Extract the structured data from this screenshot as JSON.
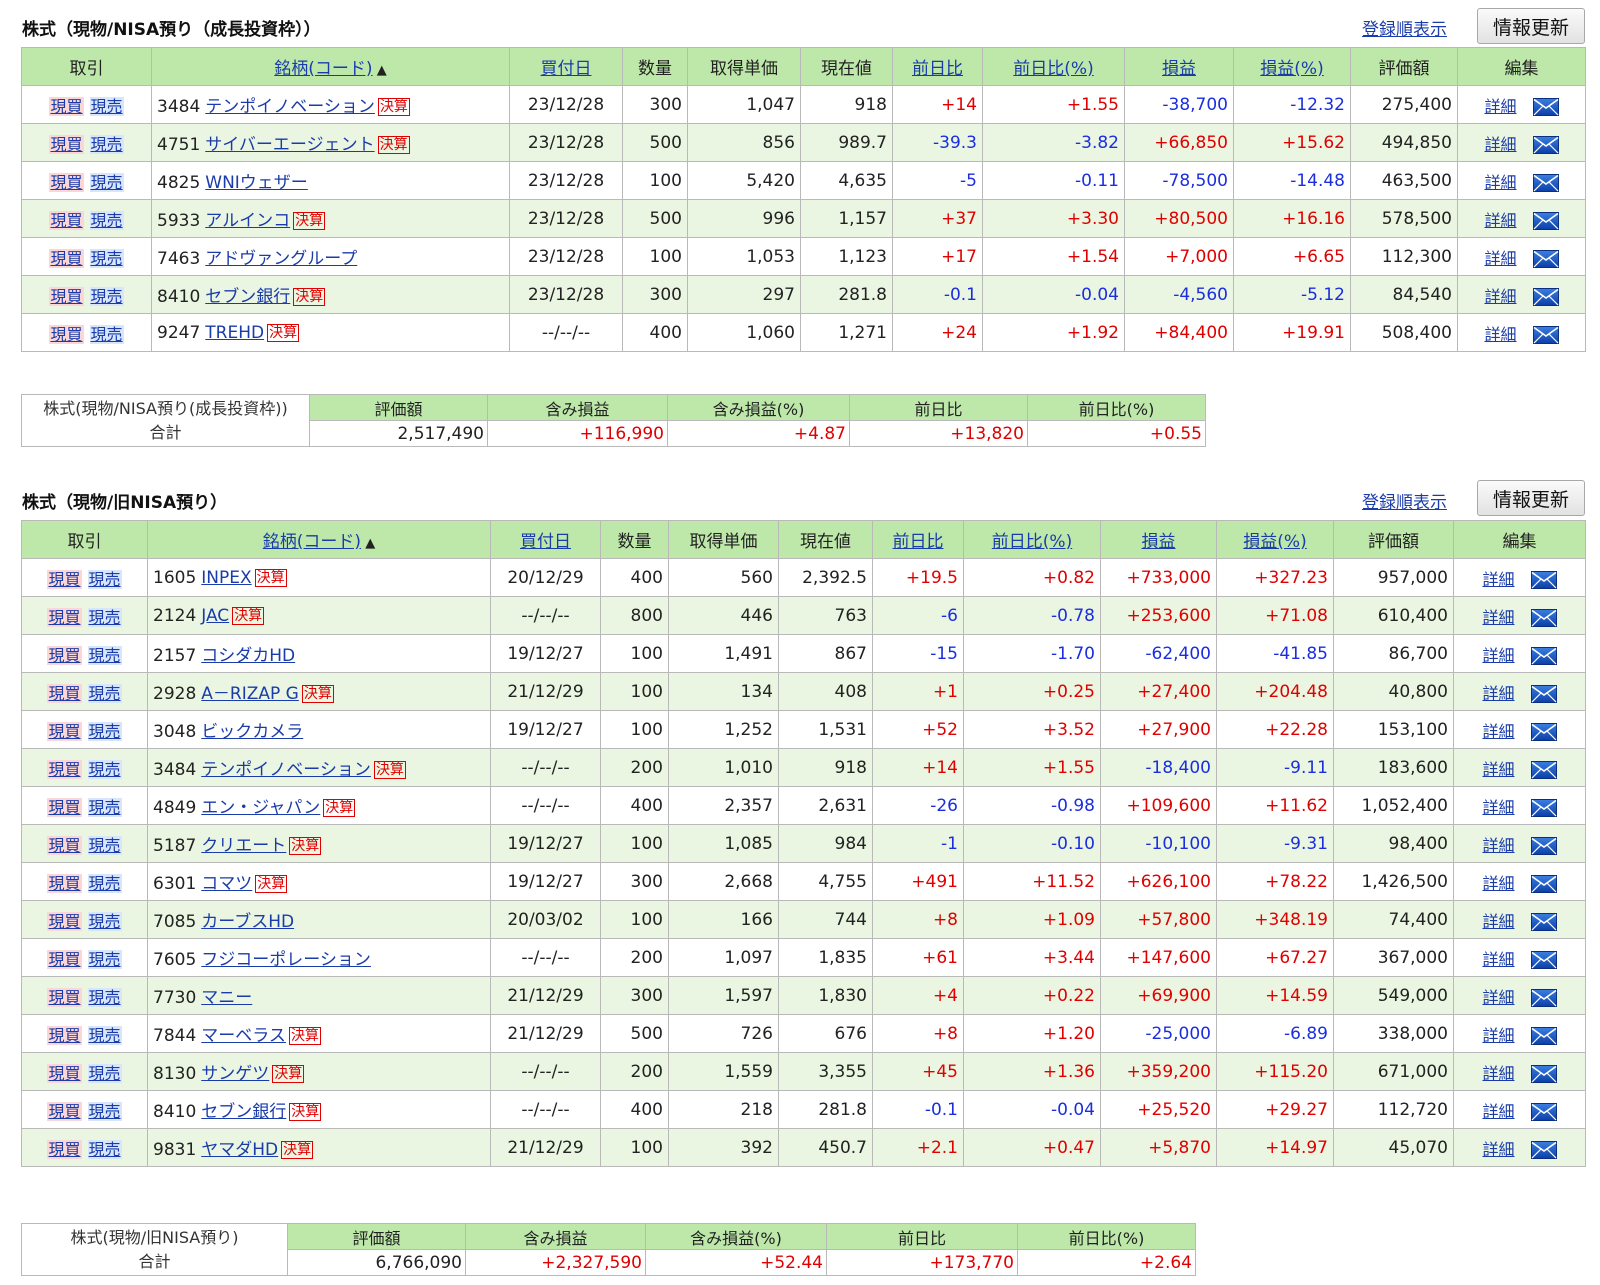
{
  "headers": [
    "取引",
    "銘柄(コード)",
    "買付日",
    "数量",
    "取得単価",
    "現在値",
    "前日比",
    "前日比(%)",
    "損益",
    "損益(%)",
    "評価額",
    "編集"
  ],
  "sort_indicator": "▲",
  "buy_label": "現買",
  "sell_label": "現売",
  "kessan_label": "決算",
  "detail_label": "詳細",
  "register_order_label": "登録順表示",
  "refresh_label": "情報更新",
  "icons": {
    "sort": "sort-person-icon",
    "mail": "mail-envelope-icon"
  },
  "colors": {
    "header_bg": "#bde8a9",
    "row_alt": "#eaf6e1",
    "positive": "#e00000",
    "negative": "#1a2ee0",
    "link": "#1a3caa"
  },
  "summary_headers": [
    "評価額",
    "含み損益",
    "含み損益(%)",
    "前日比",
    "前日比(%)"
  ],
  "sections": [
    {
      "title": "株式（現物/NISA預り（成長投資枠））",
      "rows": [
        {
          "code": "3484",
          "name": "テンポイノベーション",
          "kessan": true,
          "date": "23/12/28",
          "qty": "300",
          "cost": "1,047",
          "price": "918",
          "chg": "+14",
          "chg_pct": "+1.55",
          "pl": "-38,700",
          "pl_pct": "-12.32",
          "value": "275,400"
        },
        {
          "code": "4751",
          "name": "サイバーエージェント",
          "kessan": true,
          "date": "23/12/28",
          "qty": "500",
          "cost": "856",
          "price": "989.7",
          "chg": "-39.3",
          "chg_pct": "-3.82",
          "pl": "+66,850",
          "pl_pct": "+15.62",
          "value": "494,850"
        },
        {
          "code": "4825",
          "name": "WNIウェザー",
          "kessan": false,
          "date": "23/12/28",
          "qty": "100",
          "cost": "5,420",
          "price": "4,635",
          "chg": "-5",
          "chg_pct": "-0.11",
          "pl": "-78,500",
          "pl_pct": "-14.48",
          "value": "463,500"
        },
        {
          "code": "5933",
          "name": "アルインコ",
          "kessan": true,
          "date": "23/12/28",
          "qty": "500",
          "cost": "996",
          "price": "1,157",
          "chg": "+37",
          "chg_pct": "+3.30",
          "pl": "+80,500",
          "pl_pct": "+16.16",
          "value": "578,500"
        },
        {
          "code": "7463",
          "name": "アドヴァングループ",
          "kessan": false,
          "date": "23/12/28",
          "qty": "100",
          "cost": "1,053",
          "price": "1,123",
          "chg": "+17",
          "chg_pct": "+1.54",
          "pl": "+7,000",
          "pl_pct": "+6.65",
          "value": "112,300"
        },
        {
          "code": "8410",
          "name": "セブン銀行",
          "kessan": true,
          "date": "23/12/28",
          "qty": "300",
          "cost": "297",
          "price": "281.8",
          "chg": "-0.1",
          "chg_pct": "-0.04",
          "pl": "-4,560",
          "pl_pct": "-5.12",
          "value": "84,540"
        },
        {
          "code": "9247",
          "name": "TREHD",
          "kessan": true,
          "date": "--/--/--",
          "qty": "400",
          "cost": "1,060",
          "price": "1,271",
          "chg": "+24",
          "chg_pct": "+1.92",
          "pl": "+84,400",
          "pl_pct": "+19.91",
          "value": "508,400"
        }
      ],
      "summary": {
        "label1": "株式(現物/NISA預り(成長投資枠))",
        "label2": "合計",
        "value": "2,517,490",
        "pl": "+116,990",
        "pl_pct": "+4.87",
        "chg": "+13,820",
        "chg_pct": "+0.55"
      }
    },
    {
      "title": "株式（現物/旧NISA預り）",
      "rows": [
        {
          "code": "1605",
          "name": "INPEX",
          "kessan": true,
          "date": "20/12/29",
          "qty": "400",
          "cost": "560",
          "price": "2,392.5",
          "chg": "+19.5",
          "chg_pct": "+0.82",
          "pl": "+733,000",
          "pl_pct": "+327.23",
          "value": "957,000"
        },
        {
          "code": "2124",
          "name": "JAC",
          "kessan": true,
          "date": "--/--/--",
          "qty": "800",
          "cost": "446",
          "price": "763",
          "chg": "-6",
          "chg_pct": "-0.78",
          "pl": "+253,600",
          "pl_pct": "+71.08",
          "value": "610,400"
        },
        {
          "code": "2157",
          "name": "コシダカHD",
          "kessan": false,
          "date": "19/12/27",
          "qty": "100",
          "cost": "1,491",
          "price": "867",
          "chg": "-15",
          "chg_pct": "-1.70",
          "pl": "-62,400",
          "pl_pct": "-41.85",
          "value": "86,700"
        },
        {
          "code": "2928",
          "name": "A－RIZAP G",
          "kessan": true,
          "date": "21/12/29",
          "qty": "100",
          "cost": "134",
          "price": "408",
          "chg": "+1",
          "chg_pct": "+0.25",
          "pl": "+27,400",
          "pl_pct": "+204.48",
          "value": "40,800"
        },
        {
          "code": "3048",
          "name": "ビックカメラ",
          "kessan": false,
          "date": "19/12/27",
          "qty": "100",
          "cost": "1,252",
          "price": "1,531",
          "chg": "+52",
          "chg_pct": "+3.52",
          "pl": "+27,900",
          "pl_pct": "+22.28",
          "value": "153,100"
        },
        {
          "code": "3484",
          "name": "テンポイノベーション",
          "kessan": true,
          "date": "--/--/--",
          "qty": "200",
          "cost": "1,010",
          "price": "918",
          "chg": "+14",
          "chg_pct": "+1.55",
          "pl": "-18,400",
          "pl_pct": "-9.11",
          "value": "183,600"
        },
        {
          "code": "4849",
          "name": "エン・ジャパン",
          "kessan": true,
          "date": "--/--/--",
          "qty": "400",
          "cost": "2,357",
          "price": "2,631",
          "chg": "-26",
          "chg_pct": "-0.98",
          "pl": "+109,600",
          "pl_pct": "+11.62",
          "value": "1,052,400"
        },
        {
          "code": "5187",
          "name": "クリエート",
          "kessan": true,
          "date": "19/12/27",
          "qty": "100",
          "cost": "1,085",
          "price": "984",
          "chg": "-1",
          "chg_pct": "-0.10",
          "pl": "-10,100",
          "pl_pct": "-9.31",
          "value": "98,400"
        },
        {
          "code": "6301",
          "name": "コマツ",
          "kessan": true,
          "date": "19/12/27",
          "qty": "300",
          "cost": "2,668",
          "price": "4,755",
          "chg": "+491",
          "chg_pct": "+11.52",
          "pl": "+626,100",
          "pl_pct": "+78.22",
          "value": "1,426,500"
        },
        {
          "code": "7085",
          "name": "カーブスHD",
          "kessan": false,
          "date": "20/03/02",
          "qty": "100",
          "cost": "166",
          "price": "744",
          "chg": "+8",
          "chg_pct": "+1.09",
          "pl": "+57,800",
          "pl_pct": "+348.19",
          "value": "74,400"
        },
        {
          "code": "7605",
          "name": "フジコーポレーション",
          "kessan": false,
          "date": "--/--/--",
          "qty": "200",
          "cost": "1,097",
          "price": "1,835",
          "chg": "+61",
          "chg_pct": "+3.44",
          "pl": "+147,600",
          "pl_pct": "+67.27",
          "value": "367,000"
        },
        {
          "code": "7730",
          "name": "マニー",
          "kessan": false,
          "date": "21/12/29",
          "qty": "300",
          "cost": "1,597",
          "price": "1,830",
          "chg": "+4",
          "chg_pct": "+0.22",
          "pl": "+69,900",
          "pl_pct": "+14.59",
          "value": "549,000"
        },
        {
          "code": "7844",
          "name": "マーベラス",
          "kessan": true,
          "date": "21/12/29",
          "qty": "500",
          "cost": "726",
          "price": "676",
          "chg": "+8",
          "chg_pct": "+1.20",
          "pl": "-25,000",
          "pl_pct": "-6.89",
          "value": "338,000"
        },
        {
          "code": "8130",
          "name": "サンゲツ",
          "kessan": true,
          "date": "--/--/--",
          "qty": "200",
          "cost": "1,559",
          "price": "3,355",
          "chg": "+45",
          "chg_pct": "+1.36",
          "pl": "+359,200",
          "pl_pct": "+115.20",
          "value": "671,000"
        },
        {
          "code": "8410",
          "name": "セブン銀行",
          "kessan": true,
          "date": "--/--/--",
          "qty": "400",
          "cost": "218",
          "price": "281.8",
          "chg": "-0.1",
          "chg_pct": "-0.04",
          "pl": "+25,520",
          "pl_pct": "+29.27",
          "value": "112,720"
        },
        {
          "code": "9831",
          "name": "ヤマダHD",
          "kessan": true,
          "date": "21/12/29",
          "qty": "100",
          "cost": "392",
          "price": "450.7",
          "chg": "+2.1",
          "chg_pct": "+0.47",
          "pl": "+5,870",
          "pl_pct": "+14.97",
          "value": "45,070"
        }
      ],
      "summary": {
        "label1": "株式(現物/旧NISA預り)",
        "label2": "合計",
        "value": "6,766,090",
        "pl": "+2,327,590",
        "pl_pct": "+52.44",
        "chg": "+173,770",
        "chg_pct": "+2.64"
      }
    }
  ]
}
